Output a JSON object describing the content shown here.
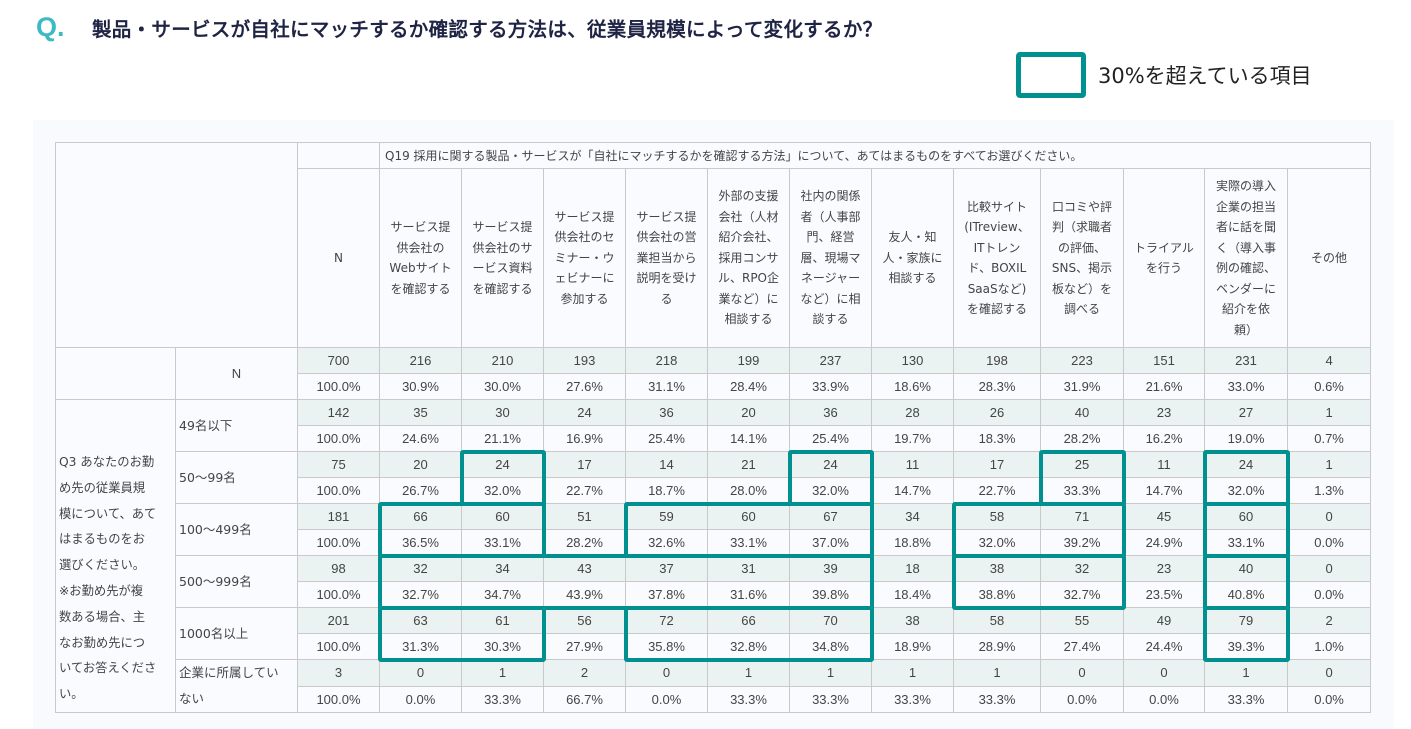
{
  "header": {
    "q_mark": "Q.",
    "title": "製品・サービスが自社にマッチするか確認する方法は、従業員規模によって変化するか？"
  },
  "legend": {
    "label": "30%を超えている項目",
    "color": "#00908f"
  },
  "table": {
    "question_title": "Q19 採用に関する製品・サービスが「自社にマッチするかを確認する方法」について、あてはまるものをすべてお選びください。",
    "n_header": "N",
    "columns": [
      [
        "サービス提",
        "供会社の",
        "Webサイト",
        "を確認する"
      ],
      [
        "サービス提",
        "供会社のサ",
        "ービス資料",
        "を確認する"
      ],
      [
        "サービス提",
        "供会社のセ",
        "ミナー・ウ",
        "ェビナーに",
        "参加する"
      ],
      [
        "サービス提",
        "供会社の営",
        "業担当から",
        "説明を受け",
        "る"
      ],
      [
        "外部の支援",
        "会社（人材",
        "紹介会社、",
        "採用コンサ",
        "ル、RPO企",
        "業など）に",
        "相談する"
      ],
      [
        "社内の関係",
        "者（人事部",
        "門、経営",
        "層、現場マ",
        "ネージャー",
        "など）に相",
        "談する"
      ],
      [
        "友人・知",
        "人・家族に",
        "相談する"
      ],
      [
        "比較サイト",
        "(ITreview、",
        "ITトレン",
        "ド、BOXIL",
        "SaaSなど)",
        "を確認する"
      ],
      [
        "口コミや評",
        "判（求職者",
        "の評価、",
        "SNS、掲示",
        "板など）を",
        "調べる"
      ],
      [
        "トライアル",
        "を行う"
      ],
      [
        "実際の導入",
        "企業の担当",
        "者に話を聞",
        "く（導入事",
        "例の確認、",
        "ベンダーに",
        "紹介を依",
        "頼）"
      ],
      [
        "その他"
      ]
    ],
    "total_row": {
      "label": "N",
      "n": "700",
      "pct_n": "100.0%",
      "counts": [
        "216",
        "210",
        "193",
        "218",
        "199",
        "237",
        "130",
        "198",
        "223",
        "151",
        "231",
        "4"
      ],
      "pcts": [
        "30.9%",
        "30.0%",
        "27.6%",
        "31.1%",
        "28.4%",
        "33.9%",
        "18.6%",
        "28.3%",
        "31.9%",
        "21.6%",
        "33.0%",
        "0.6%"
      ]
    },
    "group_label": [
      "Q3 あなたのお勤",
      "め先の従業員規",
      "模について、あて",
      "はまるものをお",
      "選びください。",
      "※お勤め先が複",
      "数ある場合、主",
      "なお勤め先につ",
      "いてお答えくださ",
      "い。"
    ],
    "rows": [
      {
        "label": [
          "49名以下"
        ],
        "n": "142",
        "pct_n": "100.0%",
        "counts": [
          "35",
          "30",
          "24",
          "36",
          "20",
          "36",
          "28",
          "26",
          "40",
          "23",
          "27",
          "1"
        ],
        "pcts": [
          "24.6%",
          "21.1%",
          "16.9%",
          "25.4%",
          "14.1%",
          "25.4%",
          "19.7%",
          "18.3%",
          "28.2%",
          "16.2%",
          "19.0%",
          "0.7%"
        ]
      },
      {
        "label": [
          "50〜99名"
        ],
        "n": "75",
        "pct_n": "100.0%",
        "counts": [
          "20",
          "24",
          "17",
          "14",
          "21",
          "24",
          "11",
          "17",
          "25",
          "11",
          "24",
          "1"
        ],
        "pcts": [
          "26.7%",
          "32.0%",
          "22.7%",
          "18.7%",
          "28.0%",
          "32.0%",
          "14.7%",
          "22.7%",
          "33.3%",
          "14.7%",
          "32.0%",
          "1.3%"
        ]
      },
      {
        "label": [
          "100〜499名"
        ],
        "n": "181",
        "pct_n": "100.0%",
        "counts": [
          "66",
          "60",
          "51",
          "59",
          "60",
          "67",
          "34",
          "58",
          "71",
          "45",
          "60",
          "0"
        ],
        "pcts": [
          "36.5%",
          "33.1%",
          "28.2%",
          "32.6%",
          "33.1%",
          "37.0%",
          "18.8%",
          "32.0%",
          "39.2%",
          "24.9%",
          "33.1%",
          "0.0%"
        ]
      },
      {
        "label": [
          "500〜999名"
        ],
        "n": "98",
        "pct_n": "100.0%",
        "counts": [
          "32",
          "34",
          "43",
          "37",
          "31",
          "39",
          "18",
          "38",
          "32",
          "23",
          "40",
          "0"
        ],
        "pcts": [
          "32.7%",
          "34.7%",
          "43.9%",
          "37.8%",
          "31.6%",
          "39.8%",
          "18.4%",
          "38.8%",
          "32.7%",
          "23.5%",
          "40.8%",
          "0.0%"
        ]
      },
      {
        "label": [
          "1000名以上"
        ],
        "n": "201",
        "pct_n": "100.0%",
        "counts": [
          "63",
          "61",
          "56",
          "72",
          "66",
          "70",
          "38",
          "58",
          "55",
          "49",
          "79",
          "2"
        ],
        "pcts": [
          "31.3%",
          "30.3%",
          "27.9%",
          "35.8%",
          "32.8%",
          "34.8%",
          "18.9%",
          "28.9%",
          "27.4%",
          "24.4%",
          "39.3%",
          "1.0%"
        ]
      },
      {
        "label": [
          "企業に所属してい",
          "ない"
        ],
        "n": "3",
        "pct_n": "100.0%",
        "counts": [
          "0",
          "1",
          "2",
          "0",
          "1",
          "1",
          "1",
          "1",
          "0",
          "0",
          "1",
          "0"
        ],
        "pcts": [
          "0.0%",
          "33.3%",
          "66.7%",
          "0.0%",
          "33.3%",
          "33.3%",
          "33.3%",
          "33.3%",
          "0.0%",
          "0.0%",
          "33.3%",
          "0.0%"
        ]
      }
    ],
    "highlights": [
      {
        "row": 1,
        "from_col": 1,
        "to_col": 1
      },
      {
        "row": 1,
        "from_col": 5,
        "to_col": 5
      },
      {
        "row": 1,
        "from_col": 8,
        "to_col": 8
      },
      {
        "row": 1,
        "from_col": 10,
        "to_col": 10
      },
      {
        "row": 2,
        "from_col": 0,
        "to_col": 1
      },
      {
        "row": 2,
        "from_col": 3,
        "to_col": 5
      },
      {
        "row": 2,
        "from_col": 7,
        "to_col": 8
      },
      {
        "row": 2,
        "from_col": 10,
        "to_col": 10
      },
      {
        "row": 3,
        "from_col": 0,
        "to_col": 5
      },
      {
        "row": 3,
        "from_col": 7,
        "to_col": 8
      },
      {
        "row": 3,
        "from_col": 10,
        "to_col": 10
      },
      {
        "row": 4,
        "from_col": 0,
        "to_col": 1
      },
      {
        "row": 4,
        "from_col": 3,
        "to_col": 5
      },
      {
        "row": 4,
        "from_col": 10,
        "to_col": 10
      }
    ]
  }
}
